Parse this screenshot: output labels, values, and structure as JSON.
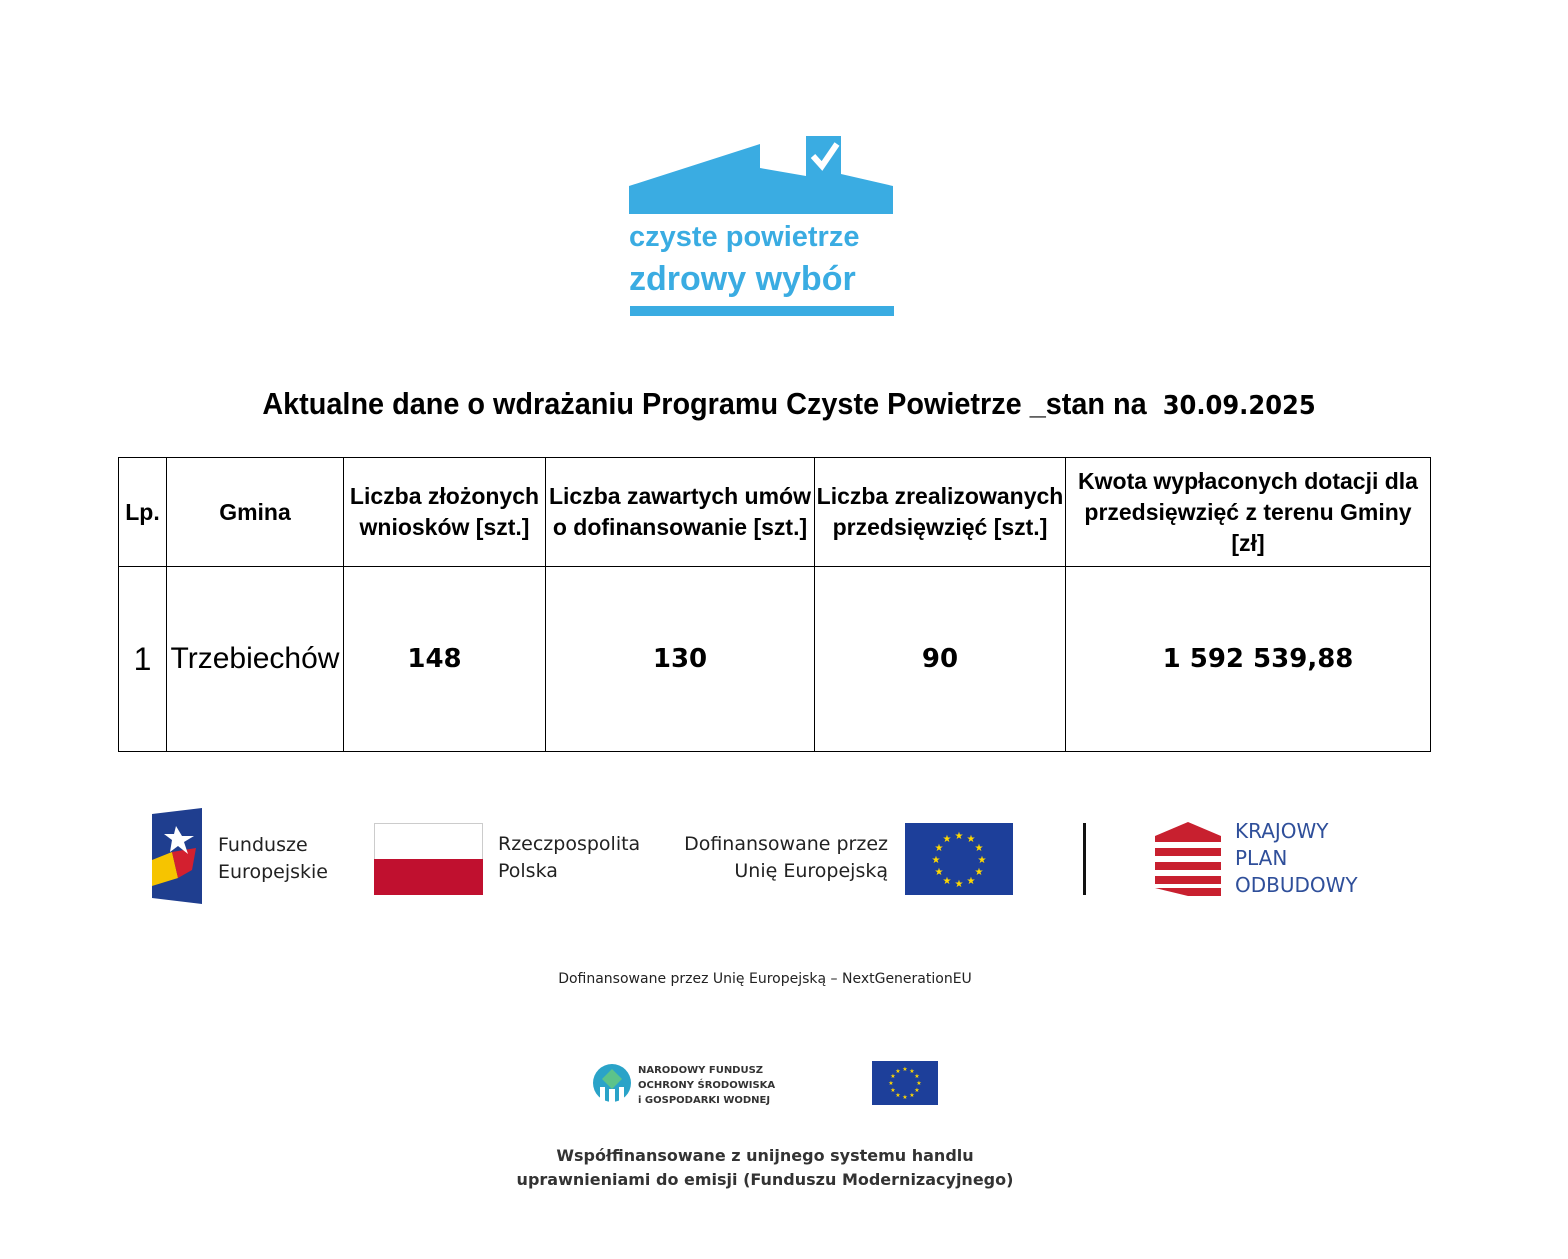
{
  "logo": {
    "line1": "czyste powietrze",
    "line2": "zdrowy wybór",
    "color": "#3aace2"
  },
  "title": {
    "text": "Aktualne dane o wdrażaniu Programu Czyste Powietrze _stan na",
    "date": "30.09.2025"
  },
  "table": {
    "headers": [
      "Lp.",
      "Gmina",
      "Liczba złożonych wniosków [szt.]",
      "Liczba zawartych umów o dofinansowanie [szt.]",
      "Liczba zrealizowanych przedsięwzięć [szt.]",
      "Kwota wypłaconych dotacji dla przedsięwzięć z terenu Gminy [zł]"
    ],
    "rows": [
      [
        "1",
        "Trzebiechów",
        "148",
        "130",
        "90",
        "1 592 539,88"
      ]
    ]
  },
  "footer": {
    "fe": {
      "line1": "Fundusze",
      "line2": "Europejskie"
    },
    "rp": {
      "line1": "Rzeczpospolita",
      "line2": "Polska"
    },
    "eu": {
      "line1": "Dofinansowane przez",
      "line2": "Unię Europejską"
    },
    "kpo": {
      "line1": "KRAJOWY",
      "line2": "PLAN",
      "line3": "ODBUDOWY"
    },
    "nextgen": "Dofinansowane przez Unię Europejską – NextGenerationEU",
    "nfos": {
      "line1": "NARODOWY FUNDUSZ",
      "line2": "OCHRONY ŚRODOWISKA",
      "line3": "i GOSPODARKI WODNEJ"
    },
    "cofinance": {
      "line1": "Współfinansowane z unijnego systemu handlu",
      "line2": "uprawnieniami do emisji (Funduszu Modernizacyjnego)"
    }
  }
}
